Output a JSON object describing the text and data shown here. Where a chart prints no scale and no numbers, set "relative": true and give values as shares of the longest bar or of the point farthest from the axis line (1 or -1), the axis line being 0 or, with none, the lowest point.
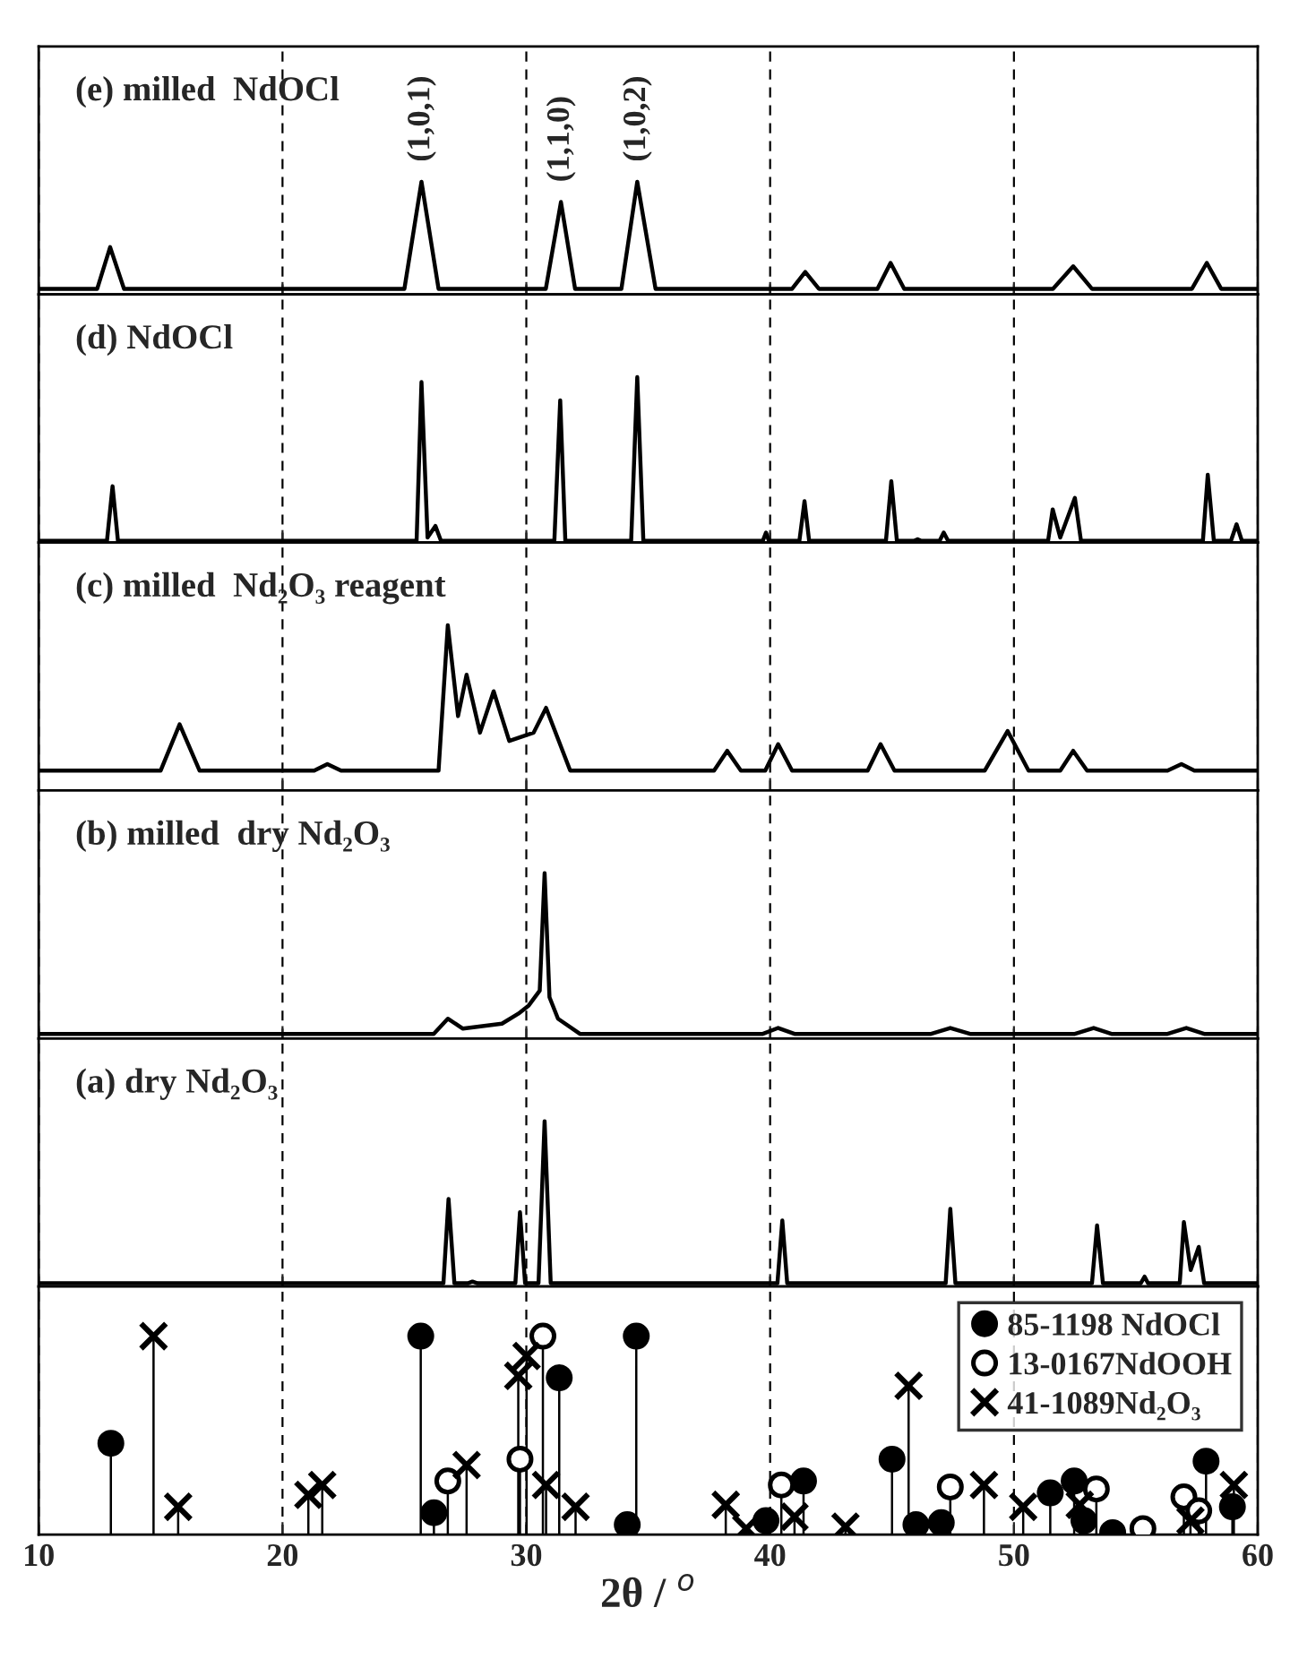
{
  "chart_data": [
    {
      "type": "line",
      "relative": true,
      "title": "(e) milled  NdOCl",
      "xlim": [
        10,
        60
      ],
      "xticks": [
        10,
        20,
        30,
        40,
        50,
        60
      ],
      "tick_labels": false,
      "grid": "x",
      "annotations": [
        {
          "text": "(1,0,1)",
          "x": 25.7,
          "y": 1
        },
        {
          "text": "(1,1,0)",
          "x": 31.42,
          "y": 0.82
        },
        {
          "text": "(1,0,2)",
          "x": 34.55,
          "y": 1
        }
      ],
      "series": [
        {
          "color": "#000000",
          "x": [
            10,
            12.4,
            12.93,
            13.5,
            25.0,
            25.7,
            26.4,
            30.8,
            31.42,
            32.0,
            33.9,
            34.55,
            35.3,
            40.9,
            41.44,
            42.0,
            44.4,
            44.94,
            45.5,
            51.6,
            52.43,
            53.2,
            57.3,
            57.91,
            58.5,
            60
          ],
          "values": [
            0.05,
            0.05,
            0.42,
            0.05,
            0.05,
            1,
            0.05,
            0.05,
            0.82,
            0.05,
            0.05,
            1,
            0.05,
            0.05,
            0.2,
            0.05,
            0.05,
            0.28,
            0.05,
            0.05,
            0.25,
            0.05,
            0.05,
            0.28,
            0.05,
            0.05
          ]
        }
      ]
    },
    {
      "type": "line",
      "relative": true,
      "title": "(d) NdOCl",
      "xlim": [
        10,
        60
      ],
      "xticks": [
        10,
        20,
        30,
        40,
        50,
        60
      ],
      "tick_labels": false,
      "grid": "x",
      "series": [
        {
          "color": "#000000",
          "x": [
            10,
            12.8,
            13.03,
            13.25,
            25.5,
            25.7,
            25.95,
            26.27,
            26.5,
            31.15,
            31.39,
            31.6,
            34.3,
            34.55,
            34.8,
            39.7,
            39.83,
            39.95,
            41.2,
            41.41,
            41.6,
            44.75,
            44.97,
            45.2,
            45.9,
            46.05,
            46.2,
            46.95,
            47.12,
            47.3,
            51.4,
            51.59,
            51.9,
            52.5,
            52.75,
            57.75,
            57.95,
            58.2,
            58.9,
            59.13,
            59.35,
            60
          ],
          "values": [
            0.01,
            0.01,
            0.34,
            0.01,
            0.01,
            0.97,
            0.03,
            0.1,
            0.01,
            0.01,
            0.86,
            0.01,
            0.01,
            1,
            0.01,
            0.01,
            0.06,
            0.01,
            0.01,
            0.25,
            0.01,
            0.01,
            0.37,
            0.01,
            0.01,
            0.02,
            0.01,
            0.01,
            0.06,
            0.01,
            0.01,
            0.2,
            0.03,
            0.27,
            0.01,
            0.01,
            0.41,
            0.01,
            0.01,
            0.11,
            0.01,
            0.01
          ]
        }
      ]
    },
    {
      "type": "line",
      "relative": true,
      "title": "(c) milled  Nd₂O₃ reagent",
      "xlim": [
        10,
        60
      ],
      "xticks": [
        10,
        20,
        30,
        40,
        50,
        60
      ],
      "tick_labels": false,
      "grid": "x",
      "series": [
        {
          "color": "#000000",
          "x": [
            10,
            15.0,
            15.78,
            16.6,
            21.3,
            21.84,
            22.4,
            26.4,
            26.78,
            27.2,
            27.55,
            28.1,
            28.66,
            29.3,
            30.3,
            30.81,
            31.8,
            37.7,
            38.24,
            38.8,
            39.8,
            40.33,
            40.9,
            44.0,
            44.53,
            45.1,
            48.8,
            49.74,
            50.6,
            51.9,
            52.43,
            53.0,
            56.3,
            56.87,
            57.4,
            60
          ],
          "values": [
            0.12,
            0.12,
            0.4,
            0.12,
            0.12,
            0.16,
            0.12,
            0.12,
            1,
            0.45,
            0.7,
            0.35,
            0.6,
            0.3,
            0.35,
            0.5,
            0.12,
            0.12,
            0.24,
            0.12,
            0.12,
            0.28,
            0.12,
            0.12,
            0.28,
            0.12,
            0.12,
            0.36,
            0.12,
            0.12,
            0.24,
            0.12,
            0.12,
            0.16,
            0.12,
            0.12
          ]
        }
      ]
    },
    {
      "type": "line",
      "relative": true,
      "title": "(b) milled  dry Nd₂O₃",
      "xlim": [
        10,
        60
      ],
      "xticks": [
        10,
        20,
        30,
        40,
        50,
        60
      ],
      "tick_labels": false,
      "grid": "x",
      "series": [
        {
          "color": "#000000",
          "x": [
            10,
            26.2,
            26.78,
            27.4,
            29.0,
            29.67,
            30.1,
            30.55,
            30.75,
            30.95,
            31.3,
            32.2,
            39.7,
            40.33,
            41.0,
            46.6,
            47.39,
            48.2,
            52.5,
            53.27,
            54.0,
            56.3,
            57.07,
            57.8,
            60
          ],
          "values": [
            0.028,
            0.028,
            0.12,
            0.06,
            0.09,
            0.15,
            0.2,
            0.29,
            1,
            0.25,
            0.12,
            0.028,
            0.028,
            0.064,
            0.028,
            0.028,
            0.064,
            0.028,
            0.028,
            0.064,
            0.028,
            0.028,
            0.064,
            0.028,
            0.028
          ]
        }
      ]
    },
    {
      "type": "line",
      "relative": true,
      "title": "(a) dry Nd₂O₃",
      "xlim": [
        10,
        60
      ],
      "xticks": [
        10,
        20,
        30,
        40,
        50,
        60
      ],
      "tick_labels": false,
      "grid": "x",
      "series": [
        {
          "color": "#000000",
          "x": [
            10,
            26.6,
            26.81,
            27.05,
            27.6,
            27.79,
            28.0,
            29.55,
            29.74,
            29.95,
            30.5,
            30.75,
            31.0,
            40.3,
            40.5,
            40.7,
            47.2,
            47.39,
            47.6,
            53.2,
            53.41,
            53.65,
            55.2,
            55.36,
            55.5,
            56.8,
            56.97,
            57.25,
            57.58,
            57.8,
            60
          ],
          "values": [
            0.02,
            0.02,
            0.53,
            0.02,
            0.02,
            0.03,
            0.02,
            0.02,
            0.45,
            0.02,
            0.02,
            1,
            0.02,
            0.02,
            0.4,
            0.02,
            0.02,
            0.47,
            0.02,
            0.02,
            0.37,
            0.02,
            0.02,
            0.06,
            0.02,
            0.02,
            0.39,
            0.1,
            0.24,
            0.02,
            0.02
          ]
        }
      ]
    },
    {
      "type": "lollipop",
      "relative": true,
      "xlabel": "2θ / $^{o}$",
      "xlim": [
        10,
        60
      ],
      "xticks": [
        10,
        20,
        30,
        40,
        50,
        60
      ],
      "tick_labels": "x",
      "grid": "x",
      "legend": "top right",
      "series": [
        {
          "name": "85-1198 NdOCl",
          "color": "#000000",
          "marker": "circle",
          "x": [
            12.96,
            25.67,
            26.21,
            31.35,
            34.14,
            34.51,
            39.83,
            41.37,
            45.0,
            45.98,
            47.02,
            51.49,
            52.47,
            52.87,
            54.05,
            57.88,
            58.96
          ],
          "values": [
            0.46,
            1,
            0.11,
            0.79,
            0.05,
            1,
            0.07,
            0.27,
            0.38,
            0.05,
            0.06,
            0.21,
            0.27,
            0.07,
            0.01,
            0.37,
            0.14
          ]
        },
        {
          "name": "13-0167NdOOH",
          "color": "#ffffff",
          "marker": "circle",
          "x": [
            26.78,
            29.74,
            30.68,
            40.46,
            47.39,
            53.38,
            55.29,
            56.97,
            57.58
          ],
          "values": [
            0.27,
            0.38,
            1,
            0.25,
            0.24,
            0.23,
            0.03,
            0.19,
            0.12
          ]
        },
        {
          "name": "41-1089Nd₂O₃",
          "color": "#000000",
          "marker": "cross",
          "x": [
            14.71,
            15.72,
            21.06,
            21.63,
            27.55,
            29.67,
            30.01,
            30.81,
            32.02,
            38.18,
            39.02,
            41.0,
            43.09,
            45.68,
            48.77,
            50.38,
            52.7,
            57.24,
            59.02
          ],
          "values": [
            1,
            0.14,
            0.2,
            0.25,
            0.35,
            0.8,
            0.9,
            0.25,
            0.14,
            0.15,
            0.03,
            0.09,
            0.04,
            0.75,
            0.25,
            0.14,
            0.15,
            0.07,
            0.25
          ]
        }
      ]
    }
  ]
}
